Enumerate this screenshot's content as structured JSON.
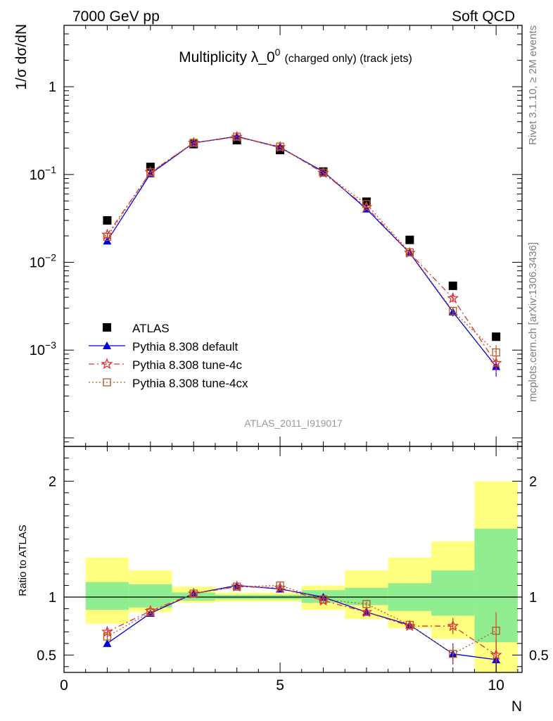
{
  "header": {
    "left": "7000 GeV pp",
    "right": "Soft QCD"
  },
  "side_text": {
    "rivet": "Rivet 3.1.10, ≥ 2M events",
    "mcplots": "mcplots.cern.ch [arXiv:1306.3436]"
  },
  "chart_data": [
    {
      "type": "scatter",
      "panel": "main",
      "title": "Multiplicity λ_0",
      "title_sup": "0",
      "title_suffix": "(charged only) (track jets)",
      "watermark": "ATLAS_2011_I919017",
      "xlabel": "N",
      "ylabel": "1/σ dσ/dN",
      "xlim": [
        0,
        10.6
      ],
      "ylim": [
        8e-05,
        5
      ],
      "yscale": "log",
      "y_tick_labels": [
        "1",
        "10⁻¹",
        "10⁻²",
        "10⁻³"
      ],
      "y_tick_values": [
        1,
        0.1,
        0.01,
        0.001
      ],
      "legend_position": "bottom-left",
      "x": [
        1,
        2,
        3,
        4,
        5,
        6,
        7,
        8,
        9,
        10
      ],
      "series": [
        {
          "name": "ATLAS",
          "color": "#000000",
          "marker": "square",
          "values": [
            0.03,
            0.122,
            0.222,
            0.246,
            0.19,
            0.108,
            0.049,
            0.018,
            0.0054,
            0.00142
          ]
        },
        {
          "name": "Pythia 8.308 default",
          "color": "#0000dd",
          "marker": "triangle",
          "line": "solid",
          "values": [
            0.0175,
            0.102,
            0.229,
            0.272,
            0.203,
            0.108,
            0.0405,
            0.0128,
            0.00272,
            0.00065
          ],
          "errors": [
            0.0006,
            0.002,
            0.003,
            0.003,
            0.003,
            0.002,
            0.001,
            0.0005,
            0.0003,
            0.00015
          ]
        },
        {
          "name": "Pythia 8.308 tune-4c",
          "color": "#dd3333",
          "marker": "star",
          "line": "dashdot",
          "values": [
            0.0206,
            0.106,
            0.229,
            0.268,
            0.205,
            0.104,
            0.0425,
            0.0128,
            0.0039,
            0.00071
          ],
          "errors": [
            0.0007,
            0.002,
            0.003,
            0.003,
            0.003,
            0.002,
            0.001,
            0.0005,
            0.0004,
            0.00016
          ]
        },
        {
          "name": "Pythia 8.308 tune-4cx",
          "color": "#bb5522",
          "marker": "open-square",
          "line": "dotted",
          "values": [
            0.0195,
            0.106,
            0.23,
            0.27,
            0.208,
            0.105,
            0.046,
            0.013,
            0.0028,
            0.00094
          ],
          "errors": [
            0.0007,
            0.002,
            0.003,
            0.003,
            0.003,
            0.002,
            0.001,
            0.0005,
            0.0003,
            0.0002
          ]
        }
      ]
    },
    {
      "type": "scatter",
      "panel": "ratio",
      "ylabel": "Ratio to ATLAS",
      "xlabel": "N",
      "xlim": [
        0,
        10.6
      ],
      "ylim": [
        0.35,
        2.3
      ],
      "x_tick_labels": [
        "0",
        "5",
        "10"
      ],
      "x_tick_values": [
        0,
        5,
        10
      ],
      "y_tick_labels": [
        "0.5",
        "1",
        "2"
      ],
      "y_tick_values": [
        0.5,
        1,
        2
      ],
      "bands": {
        "bins": [
          [
            0.5,
            1.5
          ],
          [
            1.5,
            2.5
          ],
          [
            2.5,
            3.5
          ],
          [
            3.5,
            4.5
          ],
          [
            4.5,
            5.5
          ],
          [
            5.5,
            6.5
          ],
          [
            6.5,
            7.5
          ],
          [
            7.5,
            8.5
          ],
          [
            8.5,
            9.5
          ],
          [
            9.5,
            10.5
          ]
        ],
        "stat_color": "#90ee90",
        "total_color": "#ffff80",
        "stat": [
          [
            0.89,
            1.13
          ],
          [
            0.91,
            1.11
          ],
          [
            0.97,
            1.04
          ],
          [
            0.98,
            1.02
          ],
          [
            0.98,
            1.02
          ],
          [
            0.95,
            1.06
          ],
          [
            0.93,
            1.08
          ],
          [
            0.88,
            1.12
          ],
          [
            0.84,
            1.23
          ],
          [
            0.61,
            1.59
          ]
        ],
        "total": [
          [
            0.77,
            1.34
          ],
          [
            0.87,
            1.23
          ],
          [
            0.95,
            1.09
          ],
          [
            0.96,
            1.04
          ],
          [
            0.96,
            1.04
          ],
          [
            0.89,
            1.1
          ],
          [
            0.81,
            1.23
          ],
          [
            0.73,
            1.34
          ],
          [
            0.64,
            1.48
          ],
          [
            0.35,
            2.0
          ]
        ]
      },
      "x": [
        1,
        2,
        3,
        4,
        5,
        6,
        7,
        8,
        9,
        10
      ],
      "series": [
        {
          "name": "Pythia 8.308 default",
          "color": "#0000dd",
          "marker": "triangle",
          "line": "solid",
          "values": [
            0.6,
            0.86,
            1.03,
            1.1,
            1.07,
            1.0,
            0.87,
            0.76,
            0.51,
            0.46
          ],
          "errors": [
            0.02,
            0.015,
            0.012,
            0.012,
            0.012,
            0.012,
            0.02,
            0.03,
            0.09,
            0.15
          ]
        },
        {
          "name": "Pythia 8.308 tune-4c",
          "color": "#dd3333",
          "marker": "star",
          "line": "dashdot",
          "values": [
            0.7,
            0.88,
            1.03,
            1.09,
            1.08,
            0.97,
            0.87,
            0.75,
            0.75,
            0.5
          ],
          "errors": [
            0.025,
            0.015,
            0.012,
            0.012,
            0.012,
            0.012,
            0.02,
            0.03,
            0.07,
            0.14
          ]
        },
        {
          "name": "Pythia 8.308 tune-4cx",
          "color": "#bb5522",
          "marker": "open-square",
          "line": "dotted",
          "values": [
            0.66,
            0.87,
            1.03,
            1.09,
            1.1,
            0.98,
            0.94,
            0.76,
            0.51,
            0.71
          ],
          "errors": [
            0.025,
            0.015,
            0.012,
            0.012,
            0.012,
            0.012,
            0.02,
            0.03,
            0.08,
            0.16
          ]
        }
      ]
    }
  ]
}
